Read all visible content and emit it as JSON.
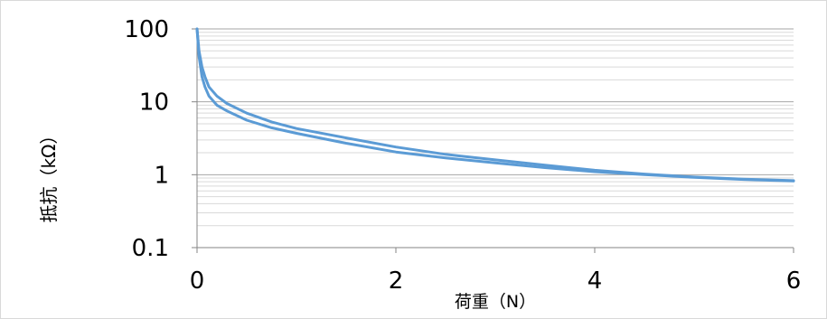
{
  "chart_data": {
    "type": "line",
    "title": "",
    "xlabel": "荷重（N）",
    "ylabel": "抵抗（kΩ）",
    "yscale": "log",
    "xlim": [
      0,
      6
    ],
    "ylim": [
      0.1,
      100
    ],
    "x_ticks": [
      0,
      2,
      4,
      6
    ],
    "x_tick_labels": [
      "0",
      "2",
      "4",
      "6"
    ],
    "y_ticks": [
      0.1,
      1,
      10,
      100
    ],
    "y_tick_labels": [
      "0.1",
      "1",
      "10",
      "100"
    ],
    "grid": {
      "major": true,
      "minor": true
    },
    "legend": "none",
    "colors": {
      "line": "#5b9bd5",
      "grid": "#a6a6a6",
      "minor_grid": "#d9d9d9",
      "axis": "#868686"
    },
    "series": [
      {
        "x": [
          0,
          0.02,
          0.05,
          0.08,
          0.12,
          0.2,
          0.3,
          0.5,
          0.75,
          1.0,
          1.5,
          2.0,
          2.5,
          3.0,
          3.5,
          4.0,
          4.5,
          5.0,
          5.5,
          6.0
        ],
        "y": [
          100,
          50,
          30,
          22,
          16,
          12,
          9.5,
          7.0,
          5.3,
          4.3,
          3.2,
          2.4,
          1.9,
          1.6,
          1.35,
          1.15,
          1.02,
          0.93,
          0.87,
          0.83
        ]
      },
      {
        "x": [
          0,
          0.02,
          0.05,
          0.08,
          0.12,
          0.2,
          0.3,
          0.5,
          0.75,
          1.0,
          1.5,
          2.0,
          2.5,
          3.0,
          3.5,
          4.0,
          4.5,
          5.0,
          5.5,
          6.0
        ],
        "y": [
          100,
          42,
          22,
          16,
          12,
          9.0,
          7.5,
          5.6,
          4.4,
          3.7,
          2.7,
          2.05,
          1.7,
          1.45,
          1.25,
          1.1,
          1.0,
          0.92,
          0.86,
          0.82
        ]
      }
    ]
  }
}
